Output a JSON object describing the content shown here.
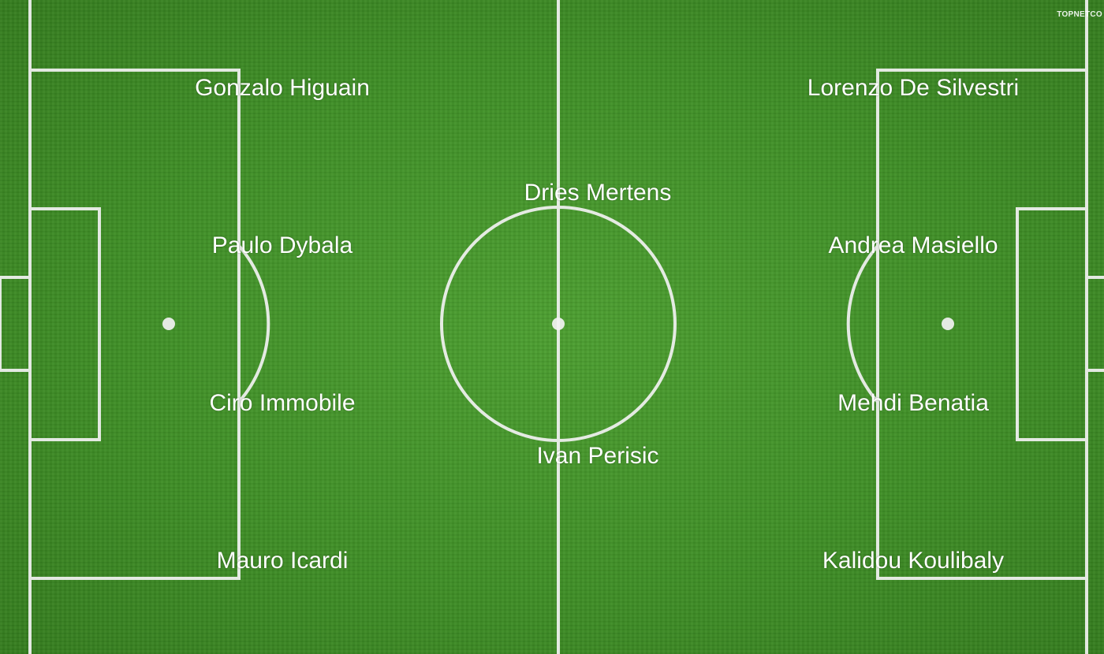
{
  "watermark": "TOPNETCO",
  "colors": {
    "grass": "#3f8f26",
    "lines": "#f2f2f2",
    "text": "#ffffff"
  },
  "players": {
    "left": [
      {
        "id": "gonzalo-higuain",
        "name": "Gonzalo Higuain"
      },
      {
        "id": "paulo-dybala",
        "name": "Paulo Dybala"
      },
      {
        "id": "ciro-immobile",
        "name": "Ciro Immobile"
      },
      {
        "id": "mauro-icardi",
        "name": "Mauro Icardi"
      }
    ],
    "center": [
      {
        "id": "dries-mertens",
        "name": "Dries Mertens"
      },
      {
        "id": "ivan-perisic",
        "name": "Ivan Perisic"
      }
    ],
    "right": [
      {
        "id": "lorenzo-de-silvestri",
        "name": "Lorenzo De Silvestri"
      },
      {
        "id": "andrea-masiello",
        "name": "Andrea Masiello"
      },
      {
        "id": "mehdi-benatia",
        "name": "Mehdi Benatia"
      },
      {
        "id": "kalidou-koulibaly",
        "name": "Kalidou Koulibaly"
      }
    ]
  }
}
